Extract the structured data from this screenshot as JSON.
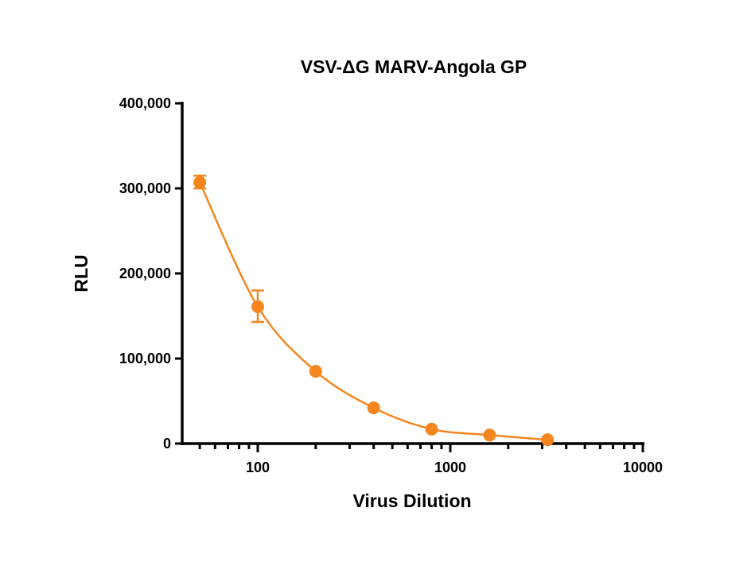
{
  "chart_data": {
    "type": "line",
    "title": "VSV-ΔG MARV-Angola GP",
    "xlabel": "Virus Dilution",
    "ylabel": "RLU",
    "xscale": "log",
    "xlim": [
      40.5,
      10000
    ],
    "ylim": [
      0,
      400000
    ],
    "x_ticks": [
      100,
      1000,
      10000
    ],
    "x_tick_labels": [
      "100",
      "1000",
      "10000"
    ],
    "y_ticks": [
      0,
      100000,
      200000,
      300000,
      400000
    ],
    "y_tick_labels": [
      "0",
      "100,000",
      "200,000",
      "300,000",
      "400,000"
    ],
    "grid": false,
    "legend": null,
    "series": [
      {
        "name": "VSV-ΔG MARV-Angola GP",
        "color": "#F5861F",
        "marker": "circle",
        "x": [
          50,
          100,
          200,
          400,
          800,
          1600,
          3200
        ],
        "values": [
          307000,
          161000,
          85000,
          42000,
          17000,
          10000,
          4500
        ],
        "error_low": [
          300000,
          143000,
          null,
          null,
          null,
          null,
          null
        ],
        "error_high": [
          315000,
          180000,
          null,
          null,
          null,
          null,
          null
        ]
      }
    ]
  }
}
